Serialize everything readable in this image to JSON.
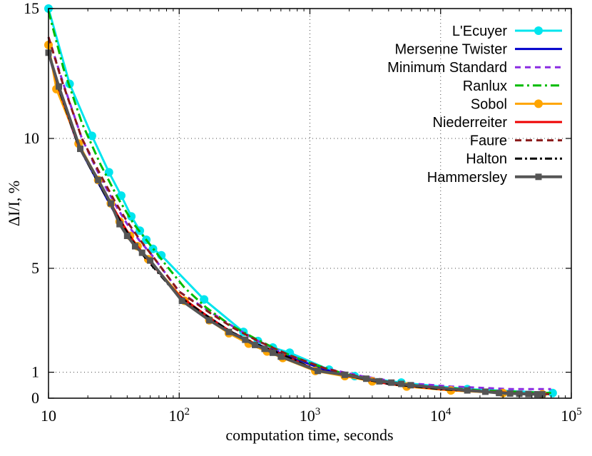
{
  "chart_data": {
    "type": "line",
    "xlabel": "computation time, seconds",
    "ylabel": "ΔI/I, %",
    "xscale": "log",
    "xlim": [
      10,
      100000
    ],
    "ylim": [
      0,
      15
    ],
    "x_ticks": [
      {
        "value": 10,
        "base": "10",
        "exp": ""
      },
      {
        "value": 100,
        "base": "10",
        "exp": "2"
      },
      {
        "value": 1000,
        "base": "10",
        "exp": "3"
      },
      {
        "value": 10000,
        "base": "10",
        "exp": "4"
      },
      {
        "value": 100000,
        "base": "10",
        "exp": "5"
      }
    ],
    "y_ticks": [
      {
        "value": 0,
        "label": "0"
      },
      {
        "value": 1,
        "label": "1"
      },
      {
        "value": 5,
        "label": "5"
      },
      {
        "value": 10,
        "label": "10"
      },
      {
        "value": 15,
        "label": "15"
      }
    ],
    "grid": true,
    "legend_position": "top-right",
    "series": [
      {
        "name": "L'Ecuyer",
        "color": "#00e5ee",
        "dash": "",
        "marker": "circle",
        "width": 3,
        "x": [
          10,
          14.5,
          21.5,
          29,
          36,
          43,
          50,
          56,
          63,
          73,
          155,
          310,
          400,
          520,
          700,
          1400,
          2200,
          5000,
          16000,
          72000
        ],
        "y": [
          15,
          12.1,
          10.1,
          8.7,
          7.8,
          7.0,
          6.45,
          6.1,
          5.75,
          5.5,
          3.8,
          2.55,
          2.2,
          1.95,
          1.75,
          1.1,
          0.85,
          0.6,
          0.35,
          0.2
        ]
      },
      {
        "name": "Mersenne Twister",
        "color": "#0000cc",
        "dash": "",
        "marker": "none",
        "width": 3,
        "x": [
          10,
          12,
          17,
          24,
          30,
          36,
          42,
          48,
          60,
          100,
          160,
          240,
          360,
          520,
          800,
          1200,
          2000,
          4000,
          10000,
          30000,
          60000
        ],
        "y": [
          13.3,
          11.8,
          9.7,
          8.3,
          7.4,
          6.7,
          6.15,
          5.75,
          5.3,
          3.9,
          3.2,
          2.6,
          2.15,
          1.85,
          1.5,
          1.15,
          0.85,
          0.55,
          0.35,
          0.2,
          0.15
        ]
      },
      {
        "name": "Minimum Standard",
        "color": "#8a2be2",
        "dash": "8,6",
        "marker": "none",
        "width": 3,
        "x": [
          10,
          13,
          18,
          25,
          32,
          40,
          50,
          62,
          100,
          170,
          260,
          400,
          700,
          1300,
          2500,
          5000,
          12000,
          35000,
          70000
        ],
        "y": [
          13.9,
          12.1,
          10.0,
          8.5,
          7.5,
          6.7,
          6.05,
          5.5,
          4.1,
          3.35,
          2.75,
          2.2,
          1.65,
          1.15,
          0.85,
          0.6,
          0.45,
          0.35,
          0.35
        ]
      },
      {
        "name": "Ranlux",
        "color": "#00bb00",
        "dash": "12,5,3,5",
        "marker": "none",
        "width": 3,
        "x": [
          10,
          13,
          18,
          25,
          34,
          45,
          60,
          80,
          110,
          160,
          240,
          380,
          600,
          1000,
          1800,
          3500,
          8000,
          20000,
          70000
        ],
        "y": [
          14.9,
          12.7,
          10.6,
          9.0,
          7.7,
          6.7,
          5.9,
          5.1,
          4.25,
          3.5,
          2.85,
          2.3,
          1.8,
          1.35,
          0.95,
          0.65,
          0.45,
          0.3,
          0.2
        ]
      },
      {
        "name": "Sobol",
        "color": "#ffa500",
        "dash": "",
        "marker": "circle",
        "width": 3,
        "x": [
          10,
          11.5,
          17,
          24,
          30,
          35,
          42,
          48,
          58,
          110,
          170,
          240,
          340,
          470,
          620,
          1100,
          1850,
          3000,
          5500,
          12000,
          30000,
          60000
        ],
        "y": [
          13.6,
          11.9,
          9.8,
          8.4,
          7.5,
          6.8,
          6.25,
          5.85,
          5.35,
          3.75,
          3.0,
          2.5,
          2.1,
          1.8,
          1.55,
          1.05,
          0.85,
          0.65,
          0.45,
          0.3,
          0.2,
          0.15
        ]
      },
      {
        "name": "Niederreiter",
        "color": "#ee0000",
        "dash": "",
        "marker": "none",
        "width": 3,
        "x": [
          10,
          12,
          17,
          24,
          30,
          36,
          44,
          55,
          100,
          170,
          250,
          380,
          600,
          1100,
          2000,
          4000,
          10000,
          30000,
          60000
        ],
        "y": [
          13.3,
          11.9,
          9.7,
          8.4,
          7.5,
          6.8,
          6.1,
          5.45,
          3.95,
          3.1,
          2.55,
          2.1,
          1.7,
          1.1,
          0.85,
          0.55,
          0.35,
          0.2,
          0.15
        ]
      },
      {
        "name": "Faure",
        "color": "#8b1a1a",
        "dash": "9,6",
        "marker": "none",
        "width": 3,
        "x": [
          10,
          12.5,
          18,
          25,
          32,
          40,
          50,
          62,
          100,
          170,
          260,
          400,
          700,
          1300,
          2500,
          5000,
          12000,
          35000,
          70000
        ],
        "y": [
          13.9,
          12.3,
          10.0,
          8.6,
          7.6,
          6.8,
          6.1,
          5.5,
          4.1,
          3.3,
          2.7,
          2.2,
          1.65,
          1.15,
          0.8,
          0.55,
          0.35,
          0.2,
          0.15
        ]
      },
      {
        "name": "Halton",
        "color": "#000000",
        "dash": "10,4,3,4",
        "marker": "none",
        "width": 3,
        "x": [
          10,
          12,
          17,
          24,
          30,
          36,
          44,
          55,
          100,
          170,
          250,
          380,
          600,
          1100,
          2000,
          4000,
          10000,
          30000,
          60000
        ],
        "y": [
          13.4,
          11.9,
          9.7,
          8.3,
          7.45,
          6.75,
          6.05,
          5.4,
          3.9,
          3.1,
          2.55,
          2.1,
          1.7,
          1.1,
          0.85,
          0.55,
          0.35,
          0.2,
          0.15
        ]
      },
      {
        "name": "Hammersley",
        "color": "#555555",
        "dash": "",
        "marker": "square",
        "width": 4,
        "x": [
          10,
          12,
          17.5,
          24,
          30,
          35,
          40,
          46,
          52,
          60,
          105,
          170,
          240,
          320,
          380,
          450,
          520,
          600,
          1150,
          1850,
          2700,
          3400,
          4200,
          5000,
          5900,
          16000,
          22000,
          28000,
          34000,
          40000,
          47000,
          55000,
          60000
        ],
        "y": [
          13.3,
          12.0,
          9.6,
          8.4,
          7.5,
          6.7,
          6.25,
          5.85,
          5.6,
          5.3,
          3.75,
          3.0,
          2.55,
          2.25,
          2.05,
          1.9,
          1.75,
          1.6,
          1.05,
          0.9,
          0.75,
          0.65,
          0.6,
          0.55,
          0.5,
          0.3,
          0.25,
          0.2,
          0.18,
          0.17,
          0.16,
          0.15,
          0.15
        ]
      }
    ]
  }
}
